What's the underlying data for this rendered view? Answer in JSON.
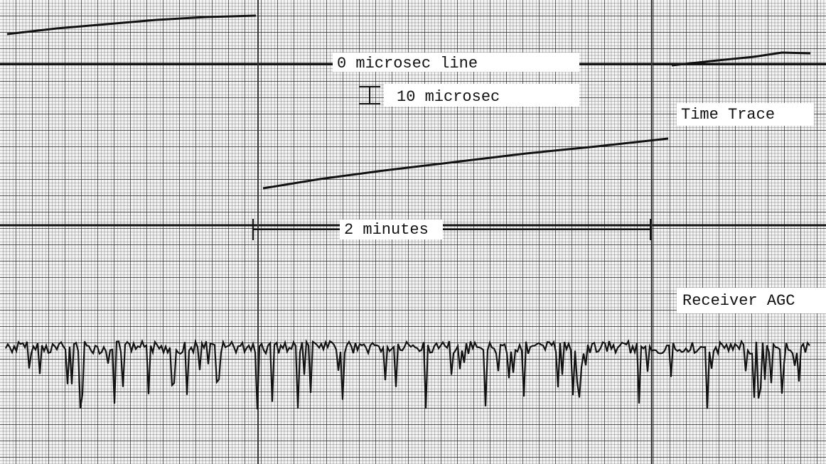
{
  "labels": {
    "zero_line": "0 microsec line",
    "scale": "10 microsec",
    "time_trace": "Time Trace",
    "duration": "2 minutes",
    "agc": "Receiver AGC"
  }
}
